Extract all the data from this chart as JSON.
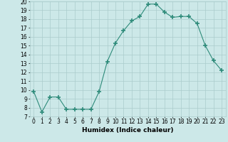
{
  "xlabel": "Humidex (Indice chaleur)",
  "x": [
    0,
    1,
    2,
    3,
    4,
    5,
    6,
    7,
    8,
    9,
    10,
    11,
    12,
    13,
    14,
    15,
    16,
    17,
    18,
    19,
    20,
    21,
    22,
    23
  ],
  "y": [
    9.8,
    7.5,
    9.2,
    9.2,
    7.8,
    7.8,
    7.8,
    7.8,
    9.8,
    13.2,
    15.3,
    16.7,
    17.8,
    18.3,
    19.7,
    19.7,
    18.8,
    18.2,
    18.3,
    18.3,
    17.5,
    15.0,
    13.3,
    12.2
  ],
  "line_color": "#2e8b7a",
  "marker": "+",
  "marker_size": 4,
  "marker_lw": 1.2,
  "bg_color": "#cce8e8",
  "grid_color": "#aacccc",
  "ylim": [
    7,
    20
  ],
  "xlim": [
    -0.5,
    23.5
  ],
  "yticks": [
    7,
    8,
    9,
    10,
    11,
    12,
    13,
    14,
    15,
    16,
    17,
    18,
    19,
    20
  ],
  "xticks": [
    0,
    1,
    2,
    3,
    4,
    5,
    6,
    7,
    8,
    9,
    10,
    11,
    12,
    13,
    14,
    15,
    16,
    17,
    18,
    19,
    20,
    21,
    22,
    23
  ],
  "xtick_labels": [
    "0",
    "1",
    "2",
    "3",
    "4",
    "5",
    "6",
    "7",
    "8",
    "9",
    "10",
    "11",
    "12",
    "13",
    "14",
    "15",
    "16",
    "17",
    "18",
    "19",
    "20",
    "21",
    "22",
    "23"
  ],
  "label_fontsize": 6.5,
  "tick_fontsize": 5.5
}
